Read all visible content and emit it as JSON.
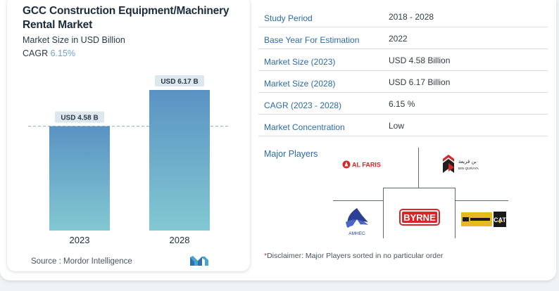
{
  "report": {
    "title": "GCC Construction Equipment/Machinery Rental Market",
    "subtitle": "Market Size in USD Billion",
    "cagr_label": "CAGR",
    "cagr_value": "6.15%"
  },
  "chart_data": {
    "type": "bar",
    "categories": [
      "2023",
      "2028"
    ],
    "values": [
      4.58,
      6.17
    ],
    "data_labels": [
      "USD 4.58 B",
      "USD 6.17 B"
    ],
    "reference_line": 4.58,
    "colors": {
      "bar_top": "#5a93c3",
      "bar_bottom": "#83c8d2",
      "label_bg": "#dde7ee",
      "reference_line": "#9fb2c2"
    }
  },
  "source": {
    "label": "Source :",
    "value": "Mordor Intelligence",
    "logo_text": "MI"
  },
  "table": {
    "rows": [
      {
        "key": "Study Period",
        "value": "2018 - 2028"
      },
      {
        "key": "Base Year For Estimation",
        "value": "2022"
      },
      {
        "key": "Market Size (2023)",
        "value": "USD 4.58 Billion"
      },
      {
        "key": "Market Size (2028)",
        "value": "USD 6.17 Billion"
      },
      {
        "key": "CAGR (2023 - 2028)",
        "value": "6.15 %"
      },
      {
        "key": "Market Concentration",
        "value": "Low"
      }
    ]
  },
  "players": {
    "label": "Major Players",
    "logos": [
      {
        "name": "AL FARIS",
        "icon": "al-faris-logo"
      },
      {
        "name": "BIN QURAYA",
        "icon": "bin-quraya-logo"
      },
      {
        "name": "AMHEC",
        "icon": "amhec-logo"
      },
      {
        "name": "BYRNE",
        "icon": "byrne-logo"
      },
      {
        "name": "CAT",
        "icon": "cat-dealer-logo"
      }
    ]
  },
  "disclaimer": {
    "star": "*",
    "text": "Disclaimer: Major Players sorted in no particular order"
  }
}
